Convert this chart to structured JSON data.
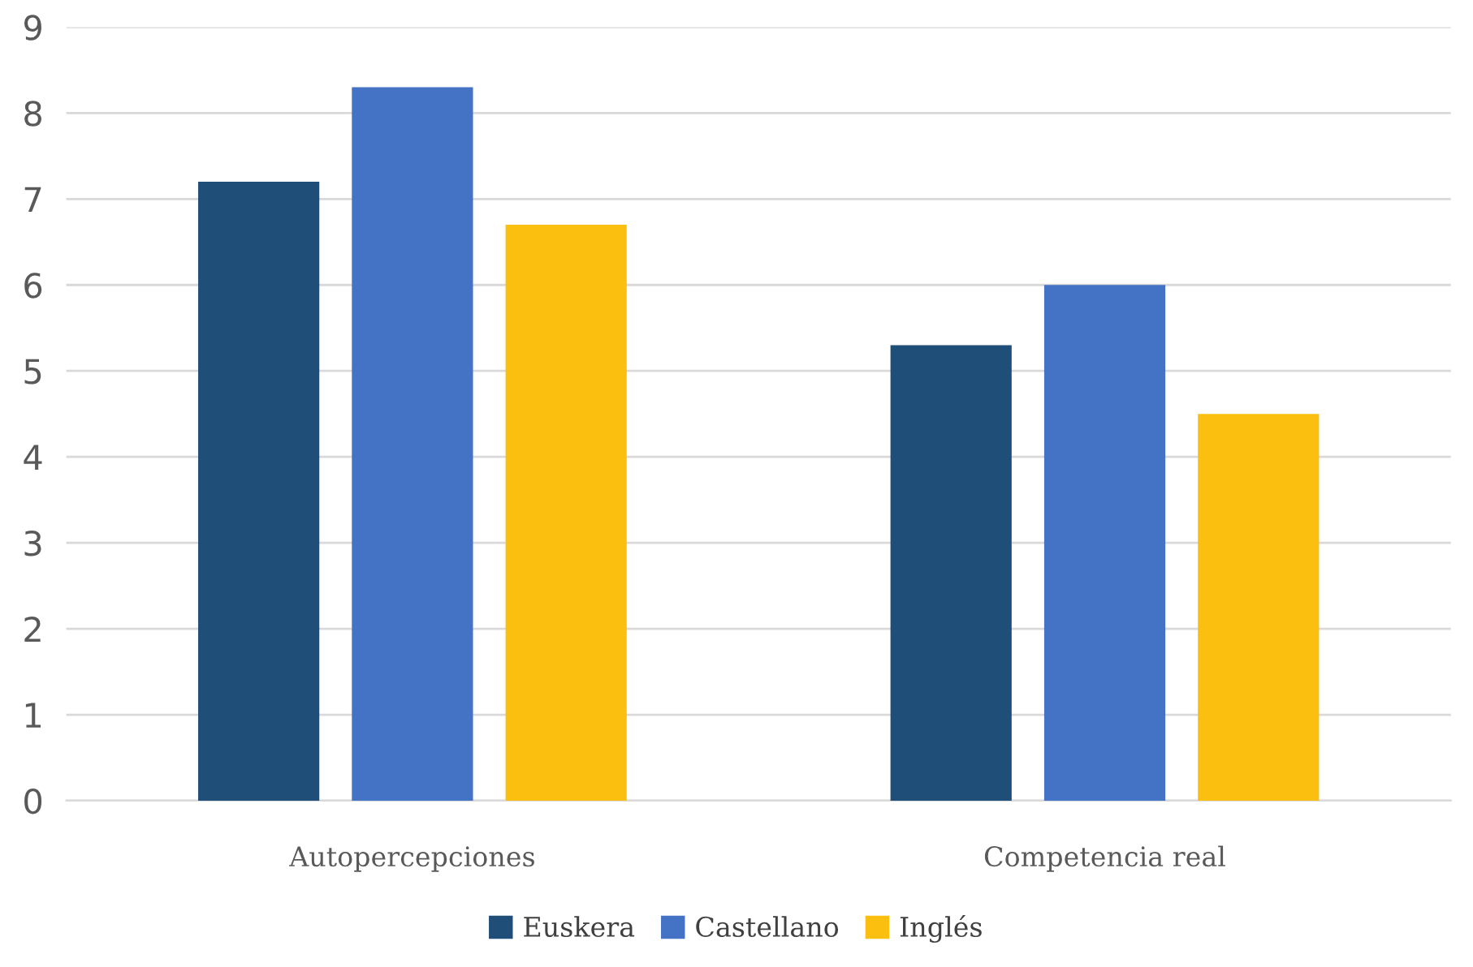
{
  "chart_data": {
    "type": "bar",
    "categories": [
      "Autopercepciones",
      "Competencia real"
    ],
    "series": [
      {
        "name": "Euskera",
        "color": "#1f4e79",
        "values": [
          7.2,
          5.3
        ]
      },
      {
        "name": "Castellano",
        "color": "#4472c4",
        "values": [
          8.3,
          6.0
        ]
      },
      {
        "name": "Inglés",
        "color": "#fbbf10",
        "values": [
          6.7,
          4.5
        ]
      }
    ],
    "ylim": [
      0,
      9
    ],
    "yticks": [
      0,
      1,
      2,
      3,
      4,
      5,
      6,
      7,
      8,
      9
    ],
    "grid": "y",
    "legend": "bottom"
  }
}
